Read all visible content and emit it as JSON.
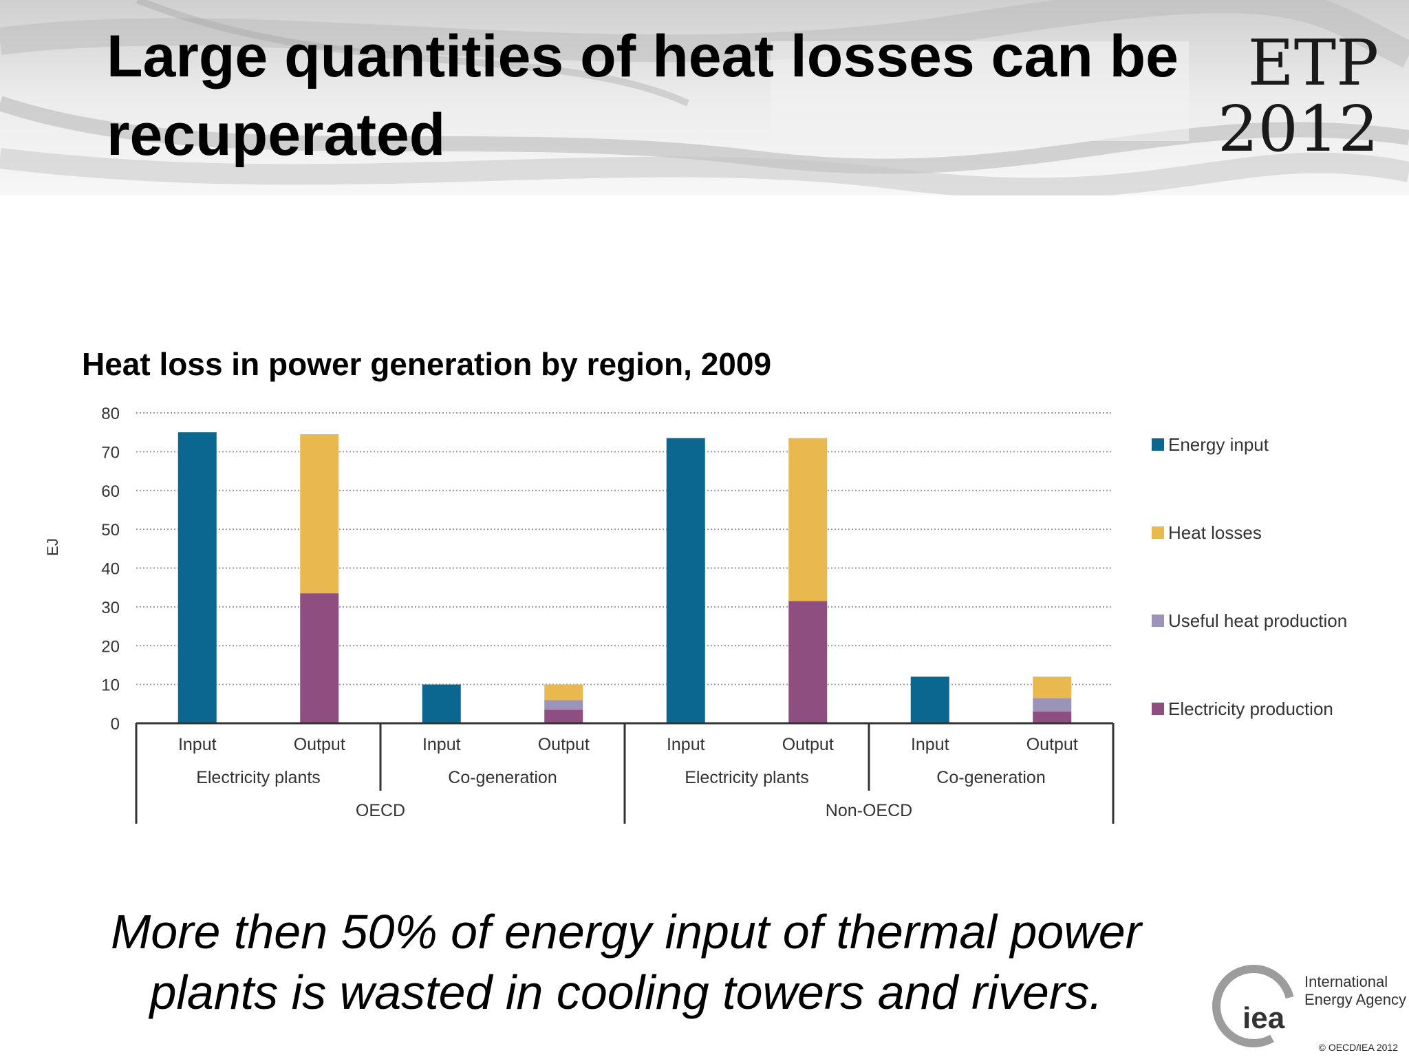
{
  "slide": {
    "title": "Large quantities of heat losses can be recuperated",
    "badge_line1": "ETP",
    "badge_line2": "2012",
    "caption_line1": "More then 50% of energy input of thermal power",
    "caption_line2": "plants is wasted in cooling towers and rivers.",
    "logo_mark": "iea",
    "logo_line1": "International",
    "logo_line2": "Energy Agency",
    "copyright": "© OECD/IEA 2012"
  },
  "chart_data": {
    "type": "bar",
    "stacked": true,
    "title": "Heat loss in power generation by region, 2009",
    "xlabel": "",
    "ylabel": "EJ",
    "ylim": [
      0,
      80
    ],
    "yticks": [
      0,
      10,
      20,
      30,
      40,
      50,
      60,
      70,
      80
    ],
    "grid": true,
    "legend_position": "right",
    "categories": [
      "Input",
      "Output",
      "Input",
      "Output",
      "Input",
      "Output",
      "Input",
      "Output"
    ],
    "groups": [
      {
        "label": "Electricity plants",
        "categories": [
          0,
          1
        ]
      },
      {
        "label": "Co-generation",
        "categories": [
          2,
          3
        ]
      },
      {
        "label": "Electricity plants",
        "categories": [
          4,
          5
        ]
      },
      {
        "label": "Co-generation",
        "categories": [
          6,
          7
        ]
      }
    ],
    "regions": [
      {
        "label": "OECD",
        "categories": [
          0,
          1,
          2,
          3
        ]
      },
      {
        "label": "Non-OECD",
        "categories": [
          4,
          5,
          6,
          7
        ]
      }
    ],
    "series": [
      {
        "name": "Electricity production",
        "color": "#8E4E7F",
        "values": [
          0,
          33.5,
          0,
          3.5,
          0,
          31.5,
          0,
          3
        ]
      },
      {
        "name": "Useful heat production",
        "color": "#9C93B9",
        "values": [
          0,
          0,
          0,
          2.5,
          0,
          0,
          0,
          3.5
        ]
      },
      {
        "name": "Heat losses",
        "color": "#E9B84F",
        "values": [
          0,
          41,
          0,
          4,
          0,
          42,
          0,
          5.5
        ]
      },
      {
        "name": "Energy input",
        "color": "#0B6790",
        "values": [
          75,
          0,
          10,
          0,
          73.5,
          0,
          12,
          0
        ]
      }
    ],
    "legend_order": [
      "Energy input",
      "Heat losses",
      "Useful heat production",
      "Electricity production"
    ]
  }
}
